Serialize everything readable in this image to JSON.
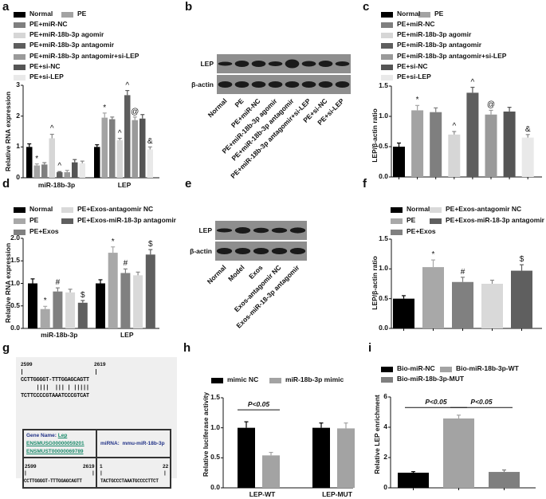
{
  "panels": {
    "a": "a",
    "b": "b",
    "c": "c",
    "d": "d",
    "e": "e",
    "f": "f",
    "g": "g",
    "h": "h",
    "i": "i"
  },
  "blot_b": {
    "rows": [
      "LEP",
      "β-actin"
    ],
    "lanes": [
      "Normal",
      "PE",
      "PE+miR-NC",
      "PE+miR-18b-3p agomir",
      "PE+miR-18b-3p antagomir",
      "PE+miR-18b-3p antagomir+si-LEP",
      "PE+si-NC",
      "PE+si-LEP"
    ]
  },
  "blot_e": {
    "rows": [
      "LEP",
      "β-actin"
    ],
    "lanes": [
      "Normal",
      "Model",
      "Exos",
      "Exos-antagomir NC",
      "Exos-miR-18-3p antagomir"
    ]
  },
  "panel_g": {
    "top_start": "2599",
    "top_end": "2619",
    "target_seq": "CCTTGGGGT-TTTGGAGCAGTT",
    "pairing": "     ||||  ||| | |||||",
    "mirna_seq": "TCTTCCCCGTAAATCCCGTCAT",
    "gene_name_label": "Gene Name:",
    "gene_name": "Lep",
    "gene_id": "ENSMUSG00000059201",
    "transcript_id": "ENSMUST00000069789",
    "mirna_label": "miRNA:",
    "mirna": "mmu-miR-18b-3p",
    "bottom_left_start": "2599",
    "bottom_left_end": "2619",
    "bottom_left_seq": "CCTTGGGGT-TTTGGAGCAGTT",
    "bottom_right_start": "1",
    "bottom_right_end": "22",
    "bottom_right_seq": "TACTGCCCTAAATGCCCCTTCT"
  },
  "chart_data": [
    {
      "id": "a",
      "type": "bar",
      "ylabel": "Relative RNA expression",
      "ylim": [
        0,
        3
      ],
      "yticks": [
        "0",
        "1",
        "2",
        "3"
      ],
      "ytick_values": [
        0,
        1,
        2,
        3
      ],
      "categories": [
        "miR-18b-3p",
        "LEP"
      ],
      "series": [
        {
          "name": "Normal",
          "color": "#000000",
          "values": [
            1.0,
            1.0
          ],
          "errors": [
            0.1,
            0.07
          ],
          "marks": [
            "",
            ""
          ]
        },
        {
          "name": "PE",
          "color": "#a3a3a3",
          "values": [
            0.4,
            1.95
          ],
          "errors": [
            0.05,
            0.15
          ],
          "marks": [
            "*",
            "*"
          ]
        },
        {
          "name": "PE+miR-NC",
          "color": "#7f7f7f",
          "values": [
            0.43,
            1.9
          ],
          "errors": [
            0.06,
            0.07
          ],
          "marks": [
            "",
            ""
          ]
        },
        {
          "name": "PE+miR-18b-3p agomir",
          "color": "#d6d6d6",
          "values": [
            1.28,
            1.22
          ],
          "errors": [
            0.13,
            0.06
          ],
          "marks": [
            "^",
            "^"
          ]
        },
        {
          "name": "PE+miR-18b-3p antagomir",
          "color": "#5e5e5e",
          "values": [
            0.18,
            2.68
          ],
          "errors": [
            0.02,
            0.15
          ],
          "marks": [
            "^",
            "^"
          ]
        },
        {
          "name": "PE+miR-18b-3p antagomir+si-LEP",
          "color": "#9a9a9a",
          "values": [
            0.18,
            1.87
          ],
          "errors": [
            0.06,
            0.1
          ],
          "marks": [
            "",
            "@"
          ]
        },
        {
          "name": "PE+si-NC",
          "color": "#555555",
          "values": [
            0.5,
            1.92
          ],
          "errors": [
            0.09,
            0.13
          ],
          "marks": [
            "",
            ""
          ]
        },
        {
          "name": "PE+si-LEP",
          "color": "#e9e9e9",
          "values": [
            0.47,
            0.92
          ],
          "errors": [
            0.07,
            0.08
          ],
          "marks": [
            "",
            "&"
          ]
        }
      ]
    },
    {
      "id": "c",
      "type": "bar",
      "ylabel": "LEP/β-actin ratio",
      "ylim": [
        0,
        1.5
      ],
      "yticks": [
        "0.0",
        "0.5",
        "1.0",
        "1.5"
      ],
      "ytick_values": [
        0,
        0.5,
        1,
        1.5
      ],
      "categories": [
        ""
      ],
      "series": [
        {
          "name": "Normal",
          "color": "#000000",
          "values": [
            0.5
          ],
          "errors": [
            0.06
          ],
          "marks": [
            ""
          ]
        },
        {
          "name": "PE",
          "color": "#a3a3a3",
          "values": [
            1.1
          ],
          "errors": [
            0.08
          ],
          "marks": [
            "*"
          ]
        },
        {
          "name": "PE+miR-NC",
          "color": "#7f7f7f",
          "values": [
            1.07
          ],
          "errors": [
            0.07
          ],
          "marks": [
            ""
          ]
        },
        {
          "name": "PE+miR-18b-3p agomir",
          "color": "#d6d6d6",
          "values": [
            0.7
          ],
          "errors": [
            0.05
          ],
          "marks": [
            "^"
          ]
        },
        {
          "name": "PE+miR-18b-3p antagomir",
          "color": "#5e5e5e",
          "values": [
            1.39
          ],
          "errors": [
            0.09
          ],
          "marks": [
            "^"
          ]
        },
        {
          "name": "PE+miR-18b-3p antagomir+si-LEP",
          "color": "#9a9a9a",
          "values": [
            1.03
          ],
          "errors": [
            0.07
          ],
          "marks": [
            "@"
          ]
        },
        {
          "name": "PE+si-NC",
          "color": "#555555",
          "values": [
            1.08
          ],
          "errors": [
            0.07
          ],
          "marks": [
            ""
          ]
        },
        {
          "name": "PE+si-LEP",
          "color": "#e9e9e9",
          "values": [
            0.65
          ],
          "errors": [
            0.05
          ],
          "marks": [
            "&"
          ]
        }
      ]
    },
    {
      "id": "d",
      "type": "bar",
      "ylabel": "Relative RNA expression",
      "ylim": [
        0,
        2
      ],
      "yticks": [
        "0.0",
        "0.5",
        "1.0",
        "1.5",
        "2.0"
      ],
      "ytick_values": [
        0,
        0.5,
        1,
        1.5,
        2
      ],
      "categories": [
        "miR-18b-3p",
        "LEP"
      ],
      "series": [
        {
          "name": "Normal",
          "color": "#000000",
          "values": [
            1.0,
            1.0
          ],
          "errors": [
            0.1,
            0.08
          ],
          "marks": [
            "",
            ""
          ]
        },
        {
          "name": "PE",
          "color": "#a8a8a8",
          "values": [
            0.43,
            1.68
          ],
          "errors": [
            0.06,
            0.13
          ],
          "marks": [
            "*",
            "*"
          ]
        },
        {
          "name": "PE+Exos",
          "color": "#808080",
          "values": [
            0.82,
            1.23
          ],
          "errors": [
            0.08,
            0.09
          ],
          "marks": [
            "#",
            "#"
          ]
        },
        {
          "name": "PE+Exos-antagomir NC",
          "color": "#d9d9d9",
          "values": [
            0.8,
            1.18
          ],
          "errors": [
            0.07,
            0.07
          ],
          "marks": [
            "",
            ""
          ]
        },
        {
          "name": "PE+Exos-miR-18-3p antagomir",
          "color": "#5f5f5f",
          "values": [
            0.57,
            1.64
          ],
          "errors": [
            0.05,
            0.11
          ],
          "marks": [
            "$",
            "$"
          ]
        }
      ]
    },
    {
      "id": "f",
      "type": "bar",
      "ylabel": "LEP/β-actin ratio",
      "ylim": [
        0,
        1.5
      ],
      "yticks": [
        "0.0",
        "0.5",
        "1.0",
        "1.5"
      ],
      "ytick_values": [
        0,
        0.5,
        1,
        1.5
      ],
      "categories": [
        ""
      ],
      "series": [
        {
          "name": "Normal",
          "color": "#000000",
          "values": [
            0.5
          ],
          "errors": [
            0.05
          ],
          "marks": [
            ""
          ]
        },
        {
          "name": "PE",
          "color": "#a8a8a8",
          "values": [
            1.03
          ],
          "errors": [
            0.12
          ],
          "marks": [
            "*"
          ]
        },
        {
          "name": "PE+Exos",
          "color": "#808080",
          "values": [
            0.78
          ],
          "errors": [
            0.08
          ],
          "marks": [
            "#"
          ]
        },
        {
          "name": "PE+Exos-antagomir NC",
          "color": "#d9d9d9",
          "values": [
            0.75
          ],
          "errors": [
            0.06
          ],
          "marks": [
            ""
          ]
        },
        {
          "name": "PE+Exos-miR-18-3p antagomir",
          "color": "#5f5f5f",
          "values": [
            0.97
          ],
          "errors": [
            0.1
          ],
          "marks": [
            "$"
          ]
        }
      ]
    },
    {
      "id": "h",
      "type": "bar",
      "ylabel": "Relative luciferase activity",
      "ylim": [
        0,
        1.5
      ],
      "yticks": [
        "0.0",
        "0.5",
        "1.0",
        "1.5"
      ],
      "ytick_values": [
        0,
        0.5,
        1,
        1.5
      ],
      "categories": [
        "LEP-WT",
        "LEP-MUT"
      ],
      "series": [
        {
          "name": "mimic NC",
          "color": "#000000",
          "values": [
            1.0,
            1.0
          ],
          "errors": [
            0.1,
            0.08
          ],
          "marks": [
            "",
            ""
          ]
        },
        {
          "name": "miR-18b-3p mimic",
          "color": "#a3a3a3",
          "values": [
            0.54,
            0.99
          ],
          "errors": [
            0.05,
            0.09
          ],
          "marks": [
            "",
            ""
          ]
        }
      ],
      "annotations": [
        {
          "text": "P<0.05",
          "y": 1.3,
          "from": [
            0,
            0
          ],
          "to": [
            0,
            1
          ]
        }
      ]
    },
    {
      "id": "i",
      "type": "bar",
      "ylabel": "Relative LEP enrichment",
      "ylim": [
        0,
        6
      ],
      "yticks": [
        "0",
        "2",
        "4",
        "6"
      ],
      "ytick_values": [
        0,
        2,
        4,
        6
      ],
      "categories": [
        ""
      ],
      "series": [
        {
          "name": "Bio-miR-NC",
          "color": "#000000",
          "values": [
            1.0
          ],
          "errors": [
            0.07
          ],
          "marks": [
            ""
          ]
        },
        {
          "name": "Bio-miR-18b-3p-WT",
          "color": "#a3a3a3",
          "values": [
            4.58
          ],
          "errors": [
            0.22
          ],
          "marks": [
            ""
          ]
        },
        {
          "name": "Bio-miR-18b-3p-MUT",
          "color": "#7f7f7f",
          "values": [
            1.05
          ],
          "errors": [
            0.13
          ],
          "marks": [
            ""
          ]
        }
      ],
      "annotations": [
        {
          "text": "P<0.05",
          "y": 5.3,
          "from": [
            0,
            0
          ],
          "to": [
            0,
            1
          ]
        },
        {
          "text": "P<0.05",
          "y": 5.3,
          "from": [
            0,
            1
          ],
          "to": [
            0,
            2
          ]
        }
      ]
    }
  ]
}
